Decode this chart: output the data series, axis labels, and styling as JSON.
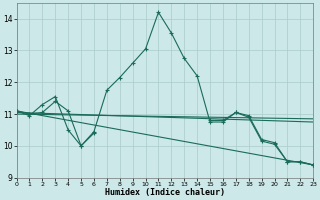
{
  "xlabel": "Humidex (Indice chaleur)",
  "bg_color": "#cce8e8",
  "grid_color": "#aacccc",
  "line_color": "#1a6b5a",
  "xlim": [
    0,
    23
  ],
  "ylim": [
    9,
    14.5
  ],
  "yticks": [
    9,
    10,
    11,
    12,
    13,
    14
  ],
  "xticks": [
    0,
    1,
    2,
    3,
    4,
    5,
    6,
    7,
    8,
    9,
    10,
    11,
    12,
    13,
    14,
    15,
    16,
    17,
    18,
    19,
    20,
    21,
    22,
    23
  ],
  "series": [
    {
      "x": [
        0,
        1,
        2,
        3,
        4,
        5,
        6,
        7,
        8,
        9,
        10,
        11,
        12,
        13,
        14,
        15,
        16,
        17,
        18,
        19,
        20,
        21,
        22,
        23
      ],
      "y": [
        11.1,
        11.0,
        11.05,
        11.4,
        11.1,
        10.0,
        10.45,
        11.75,
        12.15,
        12.6,
        13.05,
        14.2,
        13.55,
        12.75,
        12.2,
        10.75,
        10.75,
        11.05,
        10.95,
        10.2,
        10.1,
        9.5,
        9.5,
        9.4
      ],
      "has_markers": true
    },
    {
      "x": [
        0,
        23
      ],
      "y": [
        11.1,
        9.4
      ],
      "has_markers": false
    },
    {
      "x": [
        0,
        23
      ],
      "y": [
        11.05,
        10.75
      ],
      "has_markers": false
    },
    {
      "x": [
        0,
        23
      ],
      "y": [
        11.0,
        10.85
      ],
      "has_markers": false
    },
    {
      "x": [
        0,
        1,
        2,
        3,
        4,
        5,
        6
      ],
      "y": [
        11.1,
        10.95,
        11.3,
        11.55,
        10.5,
        10.0,
        10.4
      ],
      "has_markers": true
    },
    {
      "x": [
        15,
        16,
        17,
        18,
        19,
        20,
        21,
        22,
        23
      ],
      "y": [
        10.8,
        10.8,
        11.05,
        10.9,
        10.15,
        10.05,
        9.5,
        9.5,
        9.4
      ],
      "has_markers": true
    }
  ]
}
